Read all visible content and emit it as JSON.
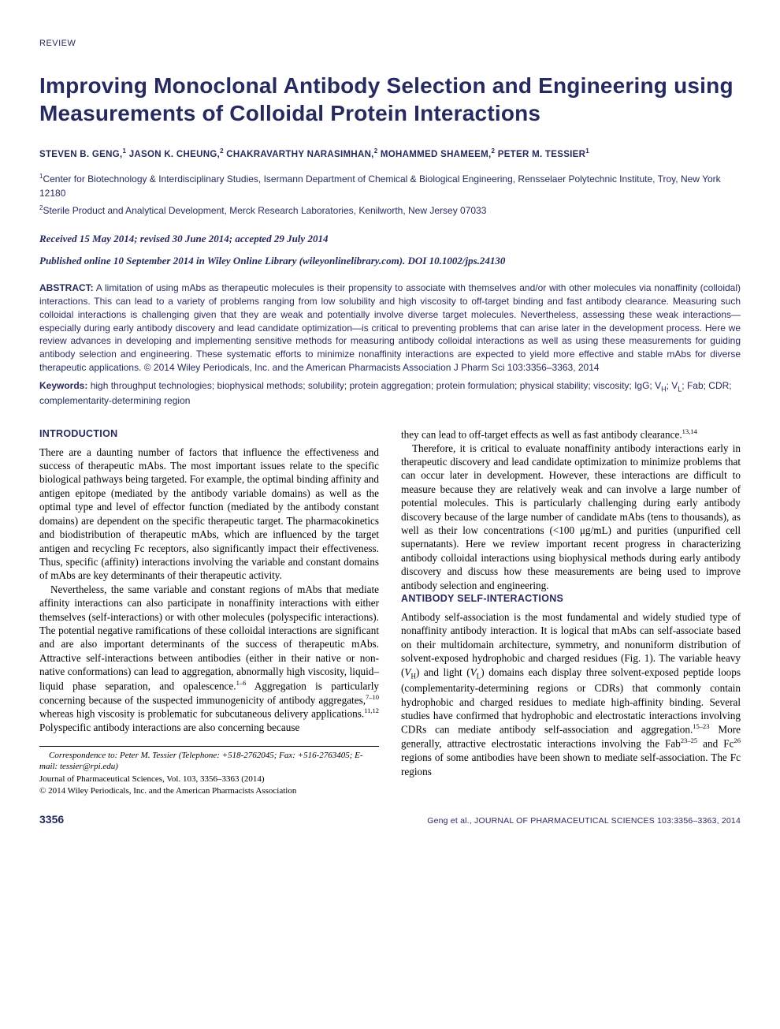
{
  "header": {
    "label": "REVIEW"
  },
  "title": "Improving Monoclonal Antibody Selection and Engineering using Measurements of Colloidal Protein Interactions",
  "authors_html": "STEVEN B. GENG,<span class=\"sup\">1</span> JASON K. CHEUNG,<span class=\"sup\">2</span> CHAKRAVARTHY NARASIMHAN,<span class=\"sup\">2</span> MOHAMMED SHAMEEM,<span class=\"sup\">2</span> PETER M. TESSIER<span class=\"sup\">1</span>",
  "affiliations": [
    "<span class=\"sup\">1</span>Center for Biotechnology & Interdisciplinary Studies, Isermann Department of Chemical & Biological Engineering, Rensselaer Polytechnic Institute, Troy, New York 12180",
    "<span class=\"sup\">2</span>Sterile Product and Analytical Development, Merck Research Laboratories, Kenilworth, New Jersey 07033"
  ],
  "dates": "Received 15 May 2014; revised 30 June 2014; accepted 29 July 2014",
  "publine": "Published online 10 September 2014 in Wiley Online Library (wileyonlinelibrary.com). DOI 10.1002/jps.24130",
  "abstract": {
    "label": "ABSTRACT:",
    "text": "A limitation of using mAbs as therapeutic molecules is their propensity to associate with themselves and/or with other molecules via nonaffinity (colloidal) interactions. This can lead to a variety of problems ranging from low solubility and high viscosity to off-target binding and fast antibody clearance. Measuring such colloidal interactions is challenging given that they are weak and potentially involve diverse target molecules. Nevertheless, assessing these weak interactions—especially during early antibody discovery and lead candidate optimization—is critical to preventing problems that can arise later in the development process. Here we review advances in developing and implementing sensitive methods for measuring antibody colloidal interactions as well as using these measurements for guiding antibody selection and engineering. These systematic efforts to minimize nonaffinity interactions are expected to yield more effective and stable mAbs for diverse therapeutic applications. © 2014 Wiley Periodicals, Inc. and the American Pharmacists Association J Pharm Sci 103:3356–3363, 2014"
  },
  "keywords": {
    "label": "Keywords:",
    "text_html": "high throughput technologies; biophysical methods; solubility; protein aggregation; protein formulation; physical stability; viscosity; IgG; V<span class=\"sub\">H</span>; V<span class=\"sub\">L</span>; Fab; CDR; complementarity-determining region"
  },
  "sections": {
    "intro": {
      "heading": "INTRODUCTION",
      "p1": "There are a daunting number of factors that influence the effectiveness and success of therapeutic mAbs. The most important issues relate to the specific biological pathways being targeted. For example, the optimal binding affinity and antigen epitope (mediated by the antibody variable domains) as well as the optimal type and level of effector function (mediated by the antibody constant domains) are dependent on the specific therapeutic target. The pharmacokinetics and biodistribution of therapeutic mAbs, which are influenced by the target antigen and recycling Fc receptors, also significantly impact their effectiveness. Thus, specific (affinity) interactions involving the variable and constant domains of mAbs are key determinants of their therapeutic activity.",
      "p2_html": "Nevertheless, the same variable and constant regions of mAbs that mediate affinity interactions can also participate in nonaffinity interactions with either themselves (self-interactions) or with other molecules (polyspecific interactions). The potential negative ramifications of these colloidal interactions are significant and are also important determinants of the success of therapeutic mAbs. Attractive self-interactions between antibodies (either in their native or non-native conformations) can lead to aggregation, abnormally high viscosity, liquid–liquid phase separation, and opalescence.<span class=\"sup\">1–6</span> Aggregation is particularly concerning because of the suspected immunogenicity of antibody aggregates,<span class=\"sup\">7–10</span> whereas high viscosity is problematic for subcutaneous delivery applications.<span class=\"sup\">11,12</span> Polyspecific antibody interactions are also concerning because",
      "p3_html": "they can lead to off-target effects as well as fast antibody clearance.<span class=\"sup\">13,14</span>",
      "p4_html": "Therefore, it is critical to evaluate nonaffinity antibody interactions early in therapeutic discovery and lead candidate optimization to minimize problems that can occur later in development. However, these interactions are difficult to measure because they are relatively weak and can involve a large number of potential molecules. This is particularly challenging during early antibody discovery because of the large number of candidate mAbs (tens to thousands), as well as their low concentrations (<100 μg/mL) and purities (unpurified cell supernatants). Here we review important recent progress in characterizing antibody colloidal interactions using biophysical methods during early antibody discovery and discuss how these measurements are being used to improve antibody selection and engineering."
    },
    "self": {
      "heading": "ANTIBODY SELF-INTERACTIONS",
      "p1_html": "Antibody self-association is the most fundamental and widely studied type of nonaffinity antibody interaction. It is logical that mAbs can self-associate based on their multidomain architecture, symmetry, and nonuniform distribution of solvent-exposed hydrophobic and charged residues (Fig. 1). The variable heavy (<span class=\"ital\">V</span><span class=\"sub\">H</span>) and light (<span class=\"ital\">V</span><span class=\"sub\">L</span>) domains each display three solvent-exposed peptide loops (complementarity-determining regions or CDRs) that commonly contain hydrophobic and charged residues to mediate high-affinity binding. Several studies have confirmed that hydrophobic and electrostatic interactions involving CDRs can mediate antibody self-association and aggregation.<span class=\"sup\">15–23</span> More generally, attractive electrostatic interactions involving the Fab<span class=\"sup\">23–25</span> and Fc<span class=\"sup\">26</span> regions of some antibodies have been shown to mediate self-association. The Fc regions"
    }
  },
  "correspondence": {
    "line1_html": "<span class=\"ital\">Correspondence to</span>: Peter M. Tessier (Telephone: +518-2762045; Fax: +516-2763405; E-mail: tessier@rpi.edu)",
    "line2": "Journal of Pharmaceutical Sciences, Vol. 103, 3356–3363 (2014)",
    "line3": "© 2014 Wiley Periodicals, Inc. and the American Pharmacists Association"
  },
  "footer": {
    "pagenum": "3356",
    "cite_html": "Geng et al., JOURNAL OF PHARMACEUTICAL SCIENCES 103:3356–3363, 2014"
  },
  "colors": {
    "brand": "#262a5e",
    "text": "#000000",
    "background": "#ffffff"
  },
  "typography": {
    "title_font": "Arial",
    "title_size_pt": 21,
    "body_font": "Times New Roman",
    "body_size_pt": 10,
    "heading_size_pt": 9.5
  }
}
